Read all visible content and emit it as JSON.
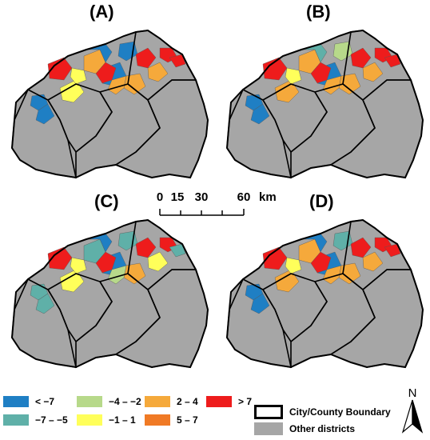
{
  "panels": [
    {
      "label": "(A)",
      "classes": [
        "lt-7",
        "gt7",
        "yellow",
        "orange",
        "blue",
        "blue",
        "yellow",
        "red",
        "lt-7",
        "red",
        "orange",
        "orange",
        "red",
        "blue",
        "orange",
        "red"
      ]
    },
    {
      "label": "(B)",
      "classes": [
        "blue",
        "gt7",
        "orange",
        "orange",
        "blue",
        "green",
        "yellow",
        "red",
        "teal",
        "red",
        "orange",
        "orange",
        "red",
        "blue",
        "orange",
        "red"
      ]
    },
    {
      "label": "(C)",
      "classes": [
        "teal",
        "gt7",
        "yellow",
        "teal",
        "blue",
        "teal",
        "yellow",
        "red",
        "blue",
        "red",
        "orange",
        "yellow",
        "red",
        "teal",
        "green",
        "teal"
      ]
    },
    {
      "label": "(D)",
      "classes": [
        "blue",
        "gt7",
        "orange",
        "orange",
        "blue",
        "teal",
        "yellow",
        "red",
        "blue",
        "red",
        "orange",
        "orange",
        "red",
        "blue",
        "orange",
        "red"
      ]
    }
  ],
  "scale": {
    "ticks": [
      "0",
      "15",
      "30",
      "60"
    ],
    "unit": "km"
  },
  "legend": {
    "classes": [
      {
        "label": "< −7",
        "color": "#1f7fc4"
      },
      {
        "label": "−7 – −5",
        "color": "#5fb0a8"
      },
      {
        "label": "−4 – −2",
        "color": "#b7d98a"
      },
      {
        "label": "−1 – 1",
        "color": "#ffff5a"
      },
      {
        "label": "2 – 4",
        "color": "#f5a93b"
      },
      {
        "label": "5 – 7",
        "color": "#f07a25"
      },
      {
        "label": "> 7",
        "color": "#ee1c1c"
      }
    ],
    "boundary_label": "City/County Boundary",
    "other_label": "Other districts",
    "other_color": "#a6a6a6"
  },
  "north_label": "N"
}
